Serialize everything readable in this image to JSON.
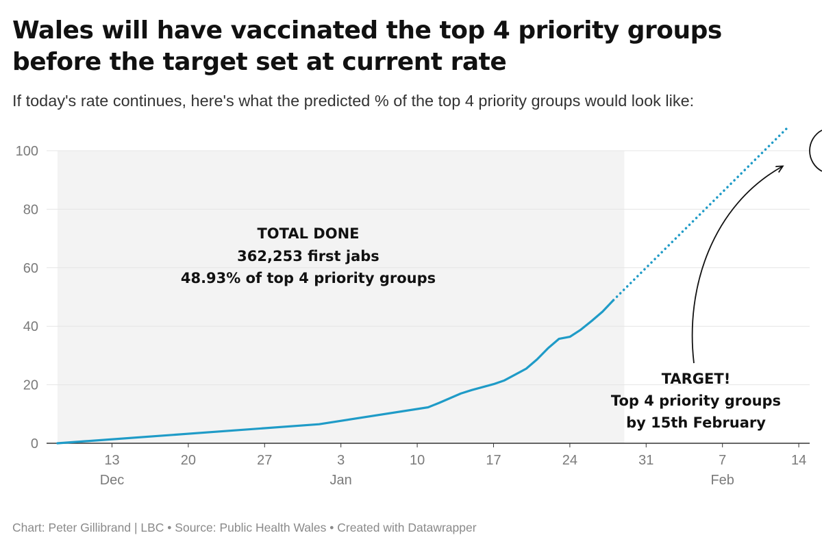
{
  "title": "Wales will have vaccinated the top 4 priority groups before the target set at current rate",
  "subtitle": "If today's rate continues, here's what the predicted % of the top 4 priority groups would look like:",
  "footer": "Chart: Peter Gillibrand | LBC • Source: Public Health Wales • Created with Datawrapper",
  "colors": {
    "line": "#1f9bc7",
    "shade": "#f3f3f3",
    "grid": "#e4e4e4",
    "axis": "#333333",
    "annotation": "#111111"
  },
  "chart_data": {
    "type": "line",
    "x_axis": {
      "type": "date",
      "range": [
        "2020-12-07",
        "2021-02-15"
      ],
      "ticks": [
        {
          "date": "2020-12-13",
          "label": "13",
          "sublabel": "Dec"
        },
        {
          "date": "2020-12-20",
          "label": "20",
          "sublabel": ""
        },
        {
          "date": "2020-12-27",
          "label": "27",
          "sublabel": ""
        },
        {
          "date": "2021-01-03",
          "label": "3",
          "sublabel": "Jan"
        },
        {
          "date": "2021-01-10",
          "label": "10",
          "sublabel": ""
        },
        {
          "date": "2021-01-17",
          "label": "17",
          "sublabel": ""
        },
        {
          "date": "2021-01-24",
          "label": "24",
          "sublabel": ""
        },
        {
          "date": "2021-01-31",
          "label": "31",
          "sublabel": ""
        },
        {
          "date": "2021-02-07",
          "label": "7",
          "sublabel": "Feb"
        },
        {
          "date": "2021-02-14",
          "label": "14",
          "sublabel": ""
        }
      ]
    },
    "y_axis": {
      "range": [
        0,
        100
      ],
      "ticks": [
        0,
        20,
        40,
        60,
        80,
        100
      ],
      "grid": true
    },
    "shaded_range": {
      "from": "2020-12-08",
      "to": "2021-01-29"
    },
    "series": [
      {
        "style": "solid",
        "points": [
          {
            "x": "2020-12-08",
            "y": 0.0
          },
          {
            "x": "2021-01-01",
            "y": 6.5
          },
          {
            "x": "2021-01-11",
            "y": 12.3
          },
          {
            "x": "2021-01-12",
            "y": 13.8
          },
          {
            "x": "2021-01-14",
            "y": 17.0
          },
          {
            "x": "2021-01-15",
            "y": 18.2
          },
          {
            "x": "2021-01-17",
            "y": 20.2
          },
          {
            "x": "2021-01-18",
            "y": 21.5
          },
          {
            "x": "2021-01-20",
            "y": 25.5
          },
          {
            "x": "2021-01-21",
            "y": 28.7
          },
          {
            "x": "2021-01-22",
            "y": 32.5
          },
          {
            "x": "2021-01-23",
            "y": 35.7
          },
          {
            "x": "2021-01-24",
            "y": 36.4
          },
          {
            "x": "2021-01-25",
            "y": 38.8
          },
          {
            "x": "2021-01-26",
            "y": 41.8
          },
          {
            "x": "2021-01-27",
            "y": 45.0
          },
          {
            "x": "2021-01-28",
            "y": 48.93
          }
        ]
      },
      {
        "style": "dotted",
        "points": [
          {
            "x": "2021-01-28",
            "y": 48.93
          },
          {
            "x": "2021-02-13",
            "y": 108.0
          }
        ]
      }
    ],
    "annotations": {
      "done": [
        "TOTAL DONE",
        "362,253 first jabs",
        "48.93% of top 4 priority groups"
      ],
      "target": [
        "TARGET!",
        "Top 4 priority groups",
        "by 15th February"
      ]
    }
  }
}
